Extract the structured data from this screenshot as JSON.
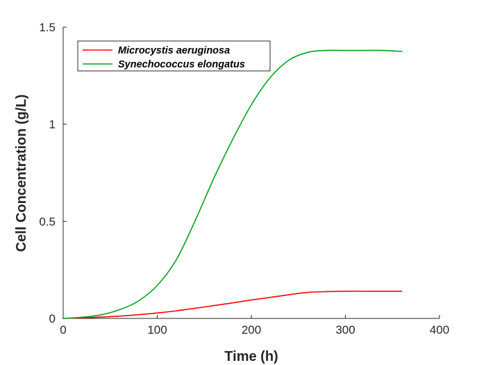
{
  "chart_data": {
    "type": "line",
    "title": "",
    "xlabel": "Time (h)",
    "ylabel": "Cell Concentration (g/L)",
    "xlim": [
      0,
      400
    ],
    "ylim": [
      0,
      1.5
    ],
    "x_ticks": [
      0,
      100,
      200,
      300,
      400
    ],
    "x_tick_labels": [
      "0",
      "100",
      "200",
      "300",
      "400"
    ],
    "y_ticks": [
      0,
      0.5,
      1,
      1.5
    ],
    "y_tick_labels": [
      "0",
      "0.5",
      "1",
      "1.5"
    ],
    "grid": false,
    "legend_position": "top-left",
    "x": [
      0,
      20,
      40,
      60,
      80,
      100,
      120,
      140,
      160,
      180,
      200,
      220,
      240,
      260,
      280,
      300,
      320,
      340,
      360
    ],
    "series": [
      {
        "name": "Microcystis aeruginosa",
        "color": "#ff0000",
        "values": [
          0.0,
          0.003,
          0.007,
          0.012,
          0.019,
          0.028,
          0.039,
          0.052,
          0.066,
          0.08,
          0.095,
          0.108,
          0.122,
          0.134,
          0.138,
          0.14,
          0.14,
          0.14,
          0.14
        ]
      },
      {
        "name": "Synechococcus elongatus",
        "color": "#00a020",
        "values": [
          0.0,
          0.006,
          0.018,
          0.045,
          0.09,
          0.17,
          0.3,
          0.5,
          0.72,
          0.92,
          1.1,
          1.24,
          1.33,
          1.37,
          1.38,
          1.38,
          1.38,
          1.38,
          1.375
        ]
      }
    ]
  }
}
